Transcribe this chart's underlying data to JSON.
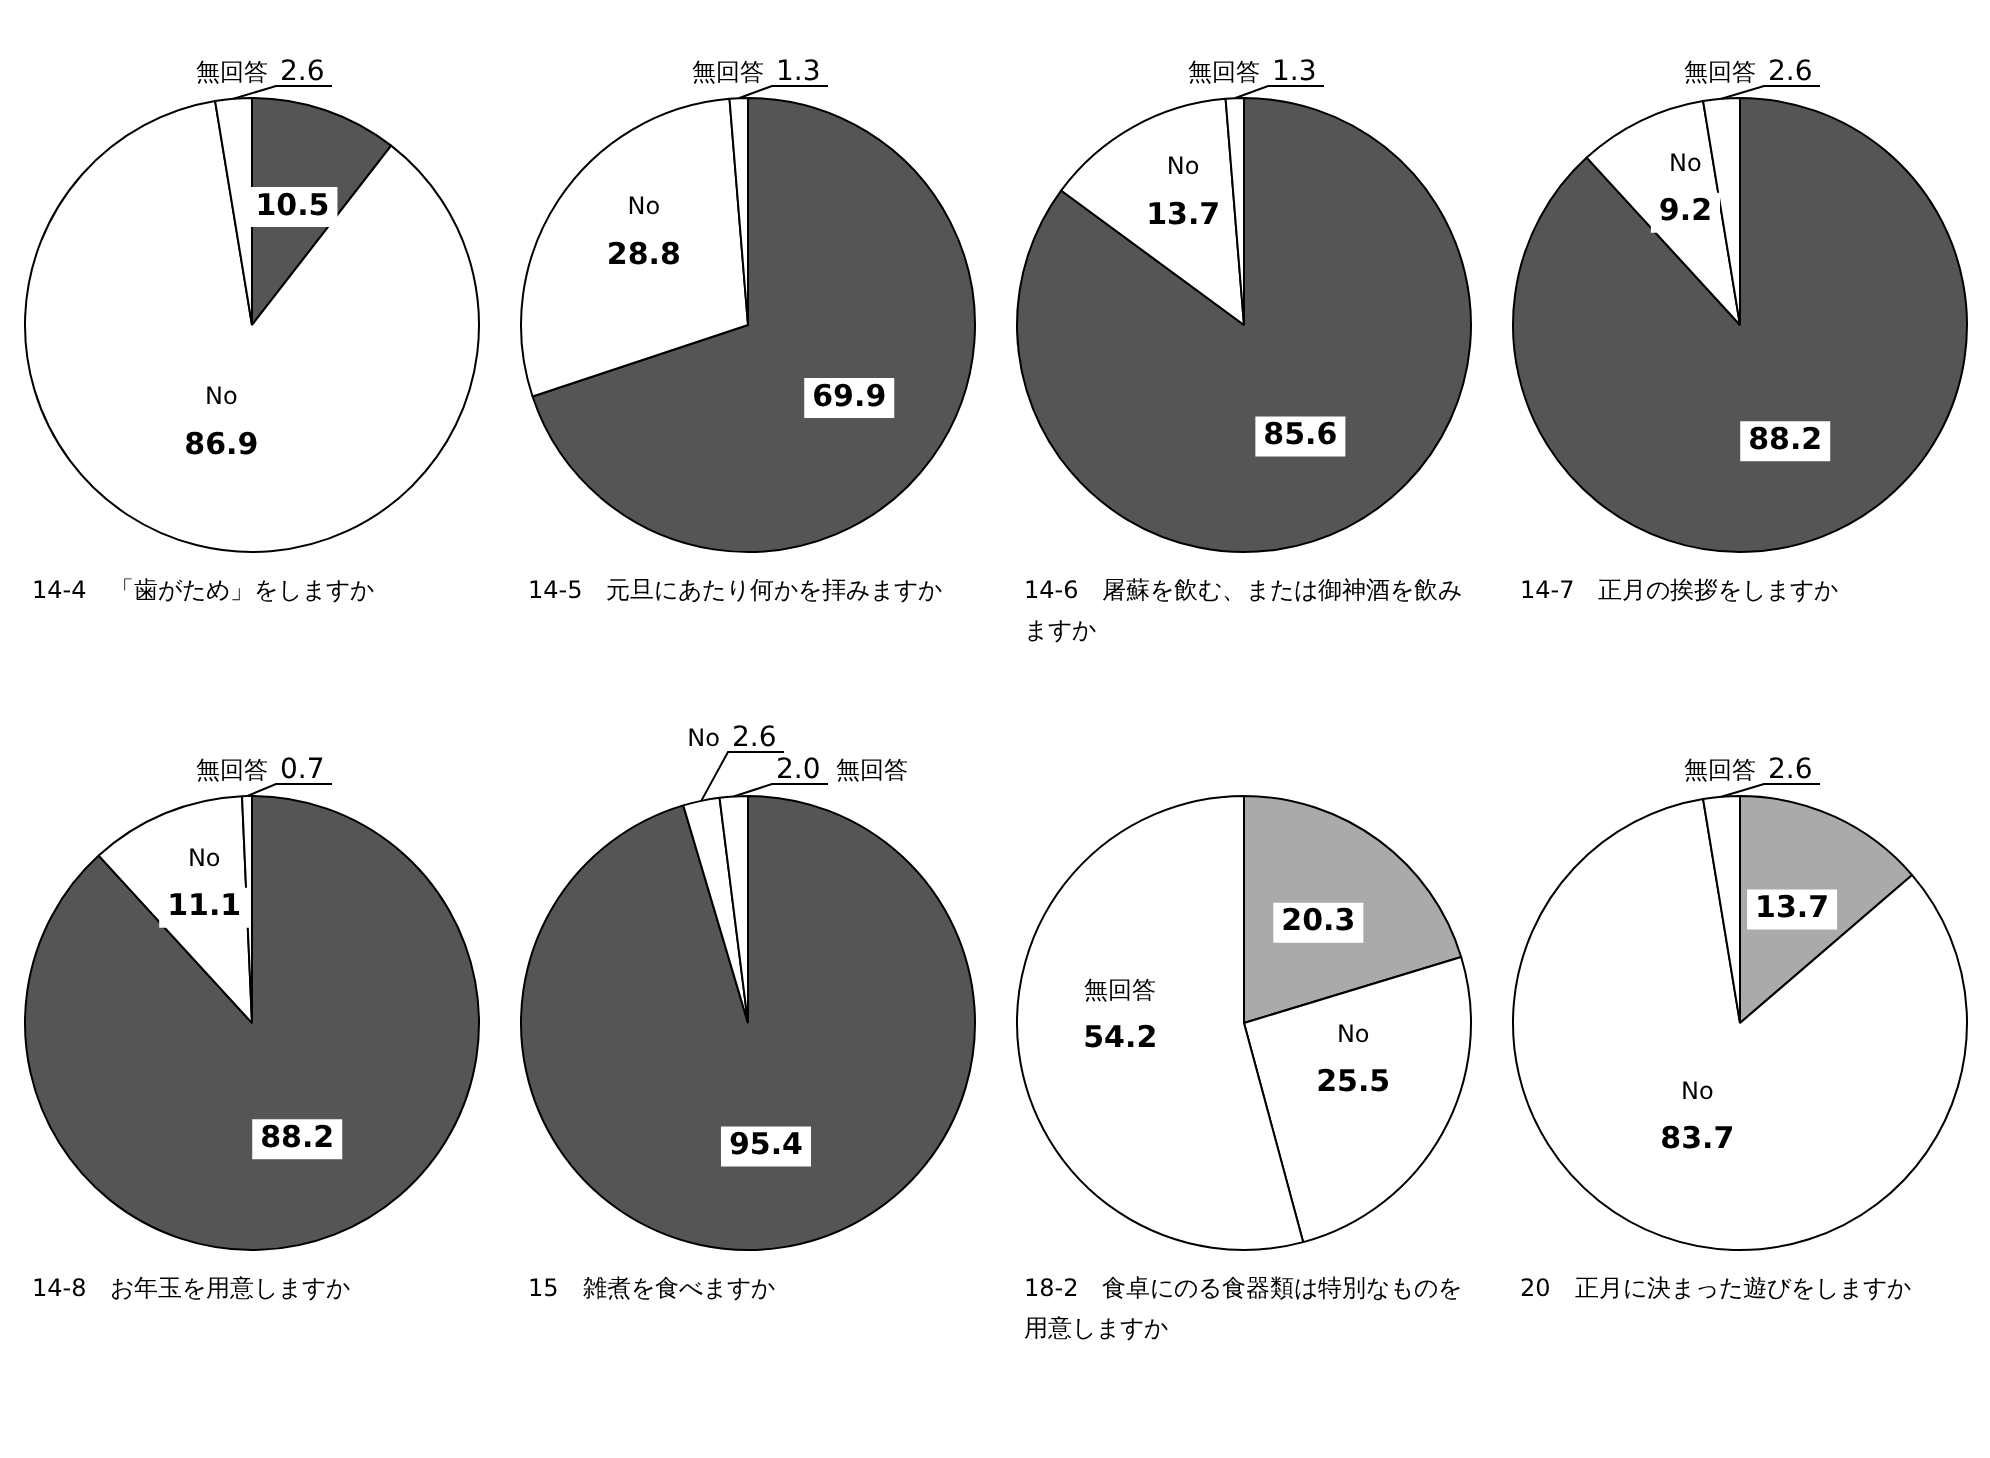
{
  "chart_data": [
    {
      "type": "pie",
      "title": "14-4　「歯がため」をしますか",
      "categories": [
        null,
        "No",
        "無回答"
      ],
      "values": [
        10.5,
        86.9,
        2.6
      ],
      "colors": [
        "#555555",
        "#ffffff",
        "#ffffff"
      ],
      "data_labels": true
    },
    {
      "type": "pie",
      "title": "14-5　元旦にあたり何かを拝みますか",
      "categories": [
        null,
        "No",
        "無回答"
      ],
      "values": [
        69.9,
        28.8,
        1.3
      ],
      "colors": [
        "#555555",
        "#ffffff",
        "#ffffff"
      ],
      "data_labels": true
    },
    {
      "type": "pie",
      "title": "14-6　屠蘇を飲む、または御神酒を飲みますか",
      "categories": [
        null,
        "No",
        "無回答"
      ],
      "values": [
        85.6,
        13.7,
        1.3
      ],
      "colors": [
        "#555555",
        "#ffffff",
        "#ffffff"
      ],
      "data_labels": true
    },
    {
      "type": "pie",
      "title": "14-7　正月の挨拶をしますか",
      "categories": [
        null,
        "No",
        "無回答"
      ],
      "values": [
        88.2,
        9.2,
        2.6
      ],
      "colors": [
        "#555555",
        "#ffffff",
        "#ffffff"
      ],
      "data_labels": true
    },
    {
      "type": "pie",
      "title": "14-8　お年玉を用意しますか",
      "categories": [
        null,
        "No",
        "無回答"
      ],
      "values": [
        88.2,
        11.1,
        0.7
      ],
      "colors": [
        "#555555",
        "#ffffff",
        "#ffffff"
      ],
      "data_labels": true
    },
    {
      "type": "pie",
      "title": "15　雑煮を食べますか",
      "categories": [
        null,
        "No",
        "無回答"
      ],
      "values": [
        95.4,
        2.6,
        2.0
      ],
      "value_labels": [
        "95.4",
        "2.6",
        "2.0"
      ],
      "colors": [
        "#555555",
        "#ffffff",
        "#ffffff"
      ],
      "data_labels": true
    },
    {
      "type": "pie",
      "title": "18-2　食卓にのる食器類は特別なものを用意しますか",
      "categories": [
        null,
        "No",
        "無回答"
      ],
      "values": [
        20.3,
        25.5,
        54.2
      ],
      "colors": [
        "#aaaaaa",
        "#ffffff",
        "#ffffff"
      ],
      "data_labels": true
    },
    {
      "type": "pie",
      "title": "20　正月に決まった遊びをしますか",
      "categories": [
        null,
        "No",
        "無回答"
      ],
      "values": [
        13.7,
        83.7,
        2.6
      ],
      "colors": [
        "#aaaaaa",
        "#ffffff",
        "#ffffff"
      ],
      "data_labels": true
    }
  ]
}
